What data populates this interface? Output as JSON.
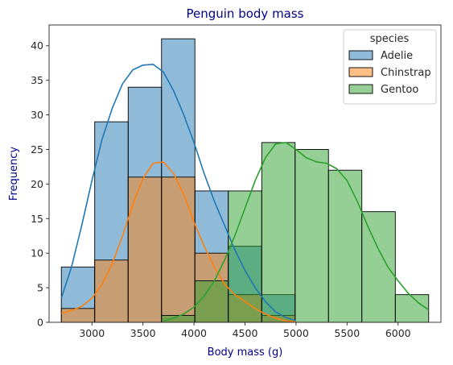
{
  "chart_data": {
    "type": "histogram",
    "title": "Penguin body mass",
    "xlabel": "Body mass (g)",
    "ylabel": "Frequency",
    "xlim": [
      2580,
      6420
    ],
    "ylim": [
      0,
      43
    ],
    "xticks": [
      3000,
      3500,
      4000,
      4500,
      5000,
      5500,
      6000
    ],
    "yticks": [
      0,
      5,
      10,
      15,
      20,
      25,
      30,
      35,
      40
    ],
    "bin_edges": [
      2700,
      3027,
      3355,
      3682,
      4009,
      4336,
      4664,
      4991,
      5318,
      5645,
      5973,
      6300
    ],
    "legend": {
      "title": "species",
      "location": "upper right"
    },
    "series": [
      {
        "name": "Adelie",
        "color": "#1f77b4",
        "counts": [
          8,
          29,
          34,
          41,
          19,
          11,
          4,
          0,
          0,
          0,
          0
        ],
        "kde_x": [
          2700,
          2800,
          2900,
          3000,
          3100,
          3200,
          3300,
          3400,
          3500,
          3600,
          3700,
          3800,
          3900,
          4000,
          4100,
          4200,
          4300,
          4400,
          4500,
          4600,
          4700,
          4800,
          4900,
          5000
        ],
        "kde_y": [
          3.5,
          8,
          14,
          20.5,
          26.5,
          31,
          34.5,
          36.5,
          37.2,
          37.3,
          36.2,
          33.5,
          30,
          26,
          21.5,
          17.5,
          14,
          10.5,
          7.5,
          5,
          3,
          1.5,
          0.7,
          0.2
        ]
      },
      {
        "name": "Chinstrap",
        "color": "#ff7f0e",
        "counts": [
          2,
          9,
          21,
          21,
          10,
          4,
          1,
          0,
          0,
          0,
          0
        ],
        "kde_x": [
          2700,
          2800,
          2900,
          3000,
          3100,
          3200,
          3300,
          3400,
          3500,
          3600,
          3700,
          3800,
          3900,
          4000,
          4100,
          4200,
          4300,
          4400,
          4500,
          4600,
          4700,
          4800,
          4900,
          5000
        ],
        "kde_y": [
          1.3,
          1.7,
          2.3,
          3.5,
          5.5,
          8.5,
          12.5,
          17,
          20.8,
          23,
          23.2,
          21.5,
          18.5,
          14.5,
          11,
          8,
          5.5,
          4,
          3,
          2,
          1.2,
          0.6,
          0.2,
          0.05
        ]
      },
      {
        "name": "Gentoo",
        "color": "#2ca02c",
        "counts": [
          0,
          0,
          0,
          1,
          6,
          19,
          26,
          25,
          22,
          16,
          4
        ],
        "kde_x": [
          3700,
          3800,
          3900,
          4000,
          4100,
          4200,
          4300,
          4400,
          4500,
          4600,
          4700,
          4800,
          4900,
          5000,
          5100,
          5200,
          5300,
          5400,
          5500,
          5600,
          5700,
          5800,
          5900,
          6000,
          6100,
          6200,
          6300
        ],
        "kde_y": [
          0.2,
          0.6,
          1.2,
          2.2,
          3.8,
          6,
          9,
          12.5,
          16.5,
          20.5,
          23.8,
          25.8,
          26,
          25,
          23.8,
          23.2,
          23,
          22.2,
          20.5,
          17.5,
          14,
          10.8,
          8,
          6,
          4.2,
          2.8,
          1.8
        ]
      }
    ]
  }
}
